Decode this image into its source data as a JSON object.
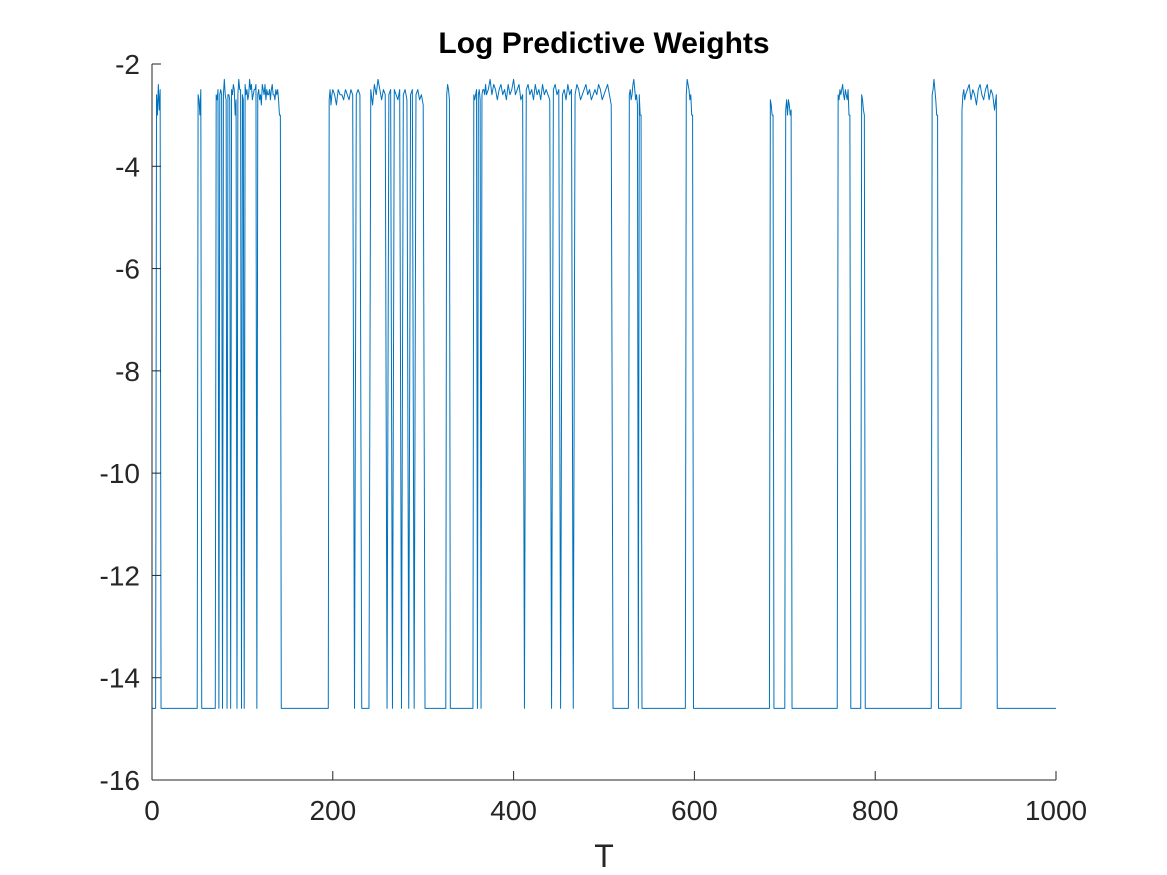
{
  "chart_data": {
    "type": "line",
    "title": "Log Predictive Weights",
    "xlabel": "T",
    "ylabel": "",
    "xlim": [
      0,
      1000
    ],
    "ylim": [
      -16,
      -2
    ],
    "xticks": [
      0,
      200,
      400,
      600,
      800,
      1000
    ],
    "xtick_labels": [
      "0",
      "200",
      "400",
      "600",
      "800",
      "1000"
    ],
    "yticks": [
      -2,
      -4,
      -6,
      -8,
      -10,
      -12,
      -14,
      -16
    ],
    "ytick_labels": [
      "-2",
      "-4",
      "-6",
      "-8",
      "-10",
      "-12",
      "-14",
      "-16"
    ],
    "grid": false,
    "line_color": "#0072BD",
    "low_value": -14.6,
    "high_baseline": -2.6,
    "series": [
      {
        "name": "",
        "x": [
          0,
          4,
          5,
          6,
          7,
          8,
          9,
          10,
          11,
          12,
          50,
          51,
          52,
          53,
          54,
          55,
          70,
          71,
          72,
          73,
          74,
          75,
          76,
          77,
          78,
          79,
          80,
          81,
          82,
          83,
          84,
          85,
          86,
          87,
          88,
          89,
          90,
          91,
          92,
          93,
          94,
          95,
          96,
          97,
          98,
          99,
          100,
          101,
          102,
          103,
          104,
          105,
          106,
          107,
          108,
          109,
          110,
          111,
          112,
          113,
          114,
          115,
          116,
          117,
          118,
          119,
          120,
          121,
          122,
          123,
          124,
          125,
          126,
          127,
          128,
          129,
          130,
          131,
          132,
          133,
          134,
          135,
          136,
          137,
          138,
          139,
          140,
          141,
          142,
          143,
          144,
          195,
          196,
          197,
          198,
          199,
          200,
          202,
          204,
          206,
          208,
          210,
          212,
          214,
          216,
          218,
          220,
          222,
          224,
          226,
          228,
          230,
          232,
          234,
          240,
          242,
          244,
          246,
          248,
          250,
          252,
          254,
          256,
          258,
          260,
          262,
          264,
          266,
          268,
          270,
          272,
          274,
          276,
          278,
          280,
          282,
          284,
          286,
          288,
          290,
          292,
          294,
          296,
          298,
          300,
          302,
          325,
          326,
          327,
          328,
          329,
          330,
          331,
          355,
          356,
          357,
          358,
          359,
          360,
          361,
          362,
          363,
          364,
          365,
          366,
          367,
          368,
          369,
          370,
          372,
          374,
          376,
          378,
          380,
          382,
          384,
          386,
          388,
          390,
          392,
          394,
          396,
          398,
          400,
          402,
          404,
          406,
          408,
          410,
          412,
          414,
          416,
          418,
          420,
          422,
          424,
          426,
          428,
          430,
          432,
          434,
          436,
          438,
          440,
          442,
          444,
          446,
          448,
          450,
          452,
          454,
          456,
          458,
          460,
          462,
          464,
          466,
          468,
          470,
          472,
          474,
          476,
          478,
          480,
          482,
          484,
          486,
          488,
          490,
          492,
          494,
          496,
          498,
          500,
          502,
          504,
          506,
          508,
          510,
          527,
          528,
          529,
          530,
          531,
          532,
          533,
          534,
          535,
          536,
          537,
          538,
          539,
          540,
          541,
          542,
          590,
          591,
          592,
          593,
          594,
          595,
          596,
          597,
          598,
          599,
          683,
          684,
          685,
          686,
          687,
          688,
          700,
          701,
          702,
          703,
          704,
          705,
          706,
          707,
          708,
          758,
          759,
          760,
          761,
          762,
          763,
          764,
          765,
          766,
          767,
          768,
          769,
          770,
          771,
          772,
          773,
          774,
          775,
          776,
          777,
          778,
          779,
          780,
          781,
          782,
          783,
          784,
          785,
          786,
          787,
          788,
          789,
          790,
          791,
          792,
          862,
          863,
          864,
          865,
          866,
          867,
          868,
          869,
          870,
          895,
          896,
          897,
          898,
          899,
          900,
          902,
          904,
          906,
          908,
          910,
          912,
          914,
          916,
          918,
          920,
          922,
          924,
          926,
          928,
          930,
          932,
          934,
          935,
          1000
        ],
        "y": [
          -14.6,
          -14.6,
          -2.6,
          -3.0,
          -2.4,
          -2.9,
          -2.5,
          -14.6,
          -14.6,
          -14.6,
          -14.6,
          -2.6,
          -2.7,
          -3.0,
          -2.5,
          -14.6,
          -14.6,
          -2.6,
          -2.7,
          -2.5,
          -14.6,
          -2.6,
          -2.5,
          -2.6,
          -14.6,
          -2.6,
          -2.3,
          -2.6,
          -2.7,
          -14.6,
          -2.6,
          -2.6,
          -2.7,
          -14.6,
          -2.5,
          -2.6,
          -2.4,
          -2.5,
          -3.0,
          -2.7,
          -14.6,
          -2.6,
          -2.3,
          -2.5,
          -2.5,
          -14.6,
          -2.6,
          -2.7,
          -14.6,
          -2.4,
          -2.6,
          -2.5,
          -2.7,
          -2.6,
          -2.3,
          -2.5,
          -2.4,
          -2.7,
          -2.6,
          -2.5,
          -2.5,
          -2.4,
          -14.6,
          -2.6,
          -2.5,
          -2.7,
          -2.6,
          -2.8,
          -2.4,
          -2.5,
          -2.6,
          -2.4,
          -2.7,
          -2.5,
          -2.6,
          -2.6,
          -2.5,
          -2.7,
          -2.5,
          -2.4,
          -2.6,
          -2.6,
          -2.7,
          -2.5,
          -2.6,
          -2.5,
          -2.7,
          -3.0,
          -3.0,
          -14.6,
          -14.6,
          -14.6,
          -2.7,
          -2.5,
          -2.8,
          -2.6,
          -2.5,
          -2.6,
          -2.8,
          -2.5,
          -2.6,
          -2.6,
          -2.7,
          -2.5,
          -2.6,
          -2.7,
          -2.5,
          -2.6,
          -14.6,
          -2.6,
          -2.5,
          -2.6,
          -14.6,
          -14.6,
          -14.6,
          -2.5,
          -2.8,
          -2.4,
          -2.6,
          -2.3,
          -2.5,
          -2.7,
          -2.5,
          -2.6,
          -14.6,
          -2.6,
          -2.5,
          -14.6,
          -2.5,
          -2.6,
          -2.7,
          -2.5,
          -14.6,
          -2.6,
          -2.5,
          -2.7,
          -14.6,
          -2.6,
          -2.5,
          -14.6,
          -2.6,
          -2.5,
          -2.7,
          -2.6,
          -2.8,
          -14.6,
          -14.6,
          -2.6,
          -2.4,
          -2.5,
          -2.7,
          -14.6,
          -14.6,
          -14.6,
          -2.6,
          -2.7,
          -2.6,
          -2.5,
          -14.6,
          -2.6,
          -2.5,
          -2.7,
          -14.6,
          -2.6,
          -2.5,
          -2.5,
          -2.6,
          -2.4,
          -2.6,
          -2.5,
          -2.3,
          -2.6,
          -2.4,
          -2.5,
          -2.7,
          -2.5,
          -2.4,
          -2.6,
          -2.5,
          -2.7,
          -2.4,
          -2.6,
          -2.5,
          -2.3,
          -2.6,
          -2.5,
          -2.4,
          -2.7,
          -2.6,
          -14.6,
          -2.5,
          -2.4,
          -2.6,
          -2.5,
          -2.7,
          -2.4,
          -2.6,
          -2.5,
          -2.7,
          -2.4,
          -2.6,
          -2.5,
          -2.6,
          -2.7,
          -14.6,
          -2.5,
          -2.4,
          -2.6,
          -2.5,
          -14.6,
          -2.6,
          -2.5,
          -2.7,
          -2.4,
          -2.6,
          -2.5,
          -14.6,
          -2.6,
          -2.4,
          -2.5,
          -2.7,
          -2.6,
          -2.5,
          -2.4,
          -2.6,
          -2.5,
          -2.7,
          -2.6,
          -2.5,
          -2.6,
          -2.4,
          -2.5,
          -2.7,
          -2.6,
          -2.5,
          -2.4,
          -2.6,
          -2.8,
          -14.6,
          -14.6,
          -2.6,
          -2.5,
          -2.7,
          -2.6,
          -2.4,
          -2.3,
          -2.5,
          -2.7,
          -2.6,
          -2.8,
          -14.6,
          -2.6,
          -3.0,
          -3.0,
          -14.6,
          -14.6,
          -2.6,
          -2.3,
          -2.4,
          -2.5,
          -2.7,
          -2.6,
          -3.0,
          -3.0,
          -14.6,
          -14.6,
          -2.7,
          -2.8,
          -3.0,
          -3.0,
          -14.6,
          -14.6,
          -2.9,
          -2.7,
          -3.0,
          -2.7,
          -2.8,
          -3.0,
          -2.9,
          -14.6,
          -14.6,
          -2.6,
          -2.7,
          -2.5,
          -2.6,
          -2.5,
          -2.4,
          -2.6,
          -2.7,
          -2.5,
          -2.6,
          -2.7,
          -2.5,
          -3.0,
          -3.0,
          -14.6,
          -14.6,
          -14.6,
          -14.6,
          -14.6,
          -14.6,
          -14.6,
          -14.6,
          -14.6,
          -14.6,
          -14.6,
          -14.6,
          -2.6,
          -2.7,
          -2.9,
          -3.0,
          -14.6,
          -14.6,
          -14.6,
          -14.6,
          -14.6,
          -2.6,
          -2.5,
          -2.3,
          -2.5,
          -2.7,
          -3.0,
          -3.0,
          -14.6,
          -14.6,
          -2.9,
          -2.6,
          -2.5,
          -2.7,
          -2.6,
          -2.5,
          -2.4,
          -2.7,
          -2.5,
          -2.6,
          -2.8,
          -2.5,
          -2.4,
          -2.6,
          -2.7,
          -2.5,
          -2.4,
          -2.7,
          -2.5,
          -2.6,
          -2.9,
          -2.6,
          -14.6,
          -14.6
        ]
      }
    ]
  }
}
